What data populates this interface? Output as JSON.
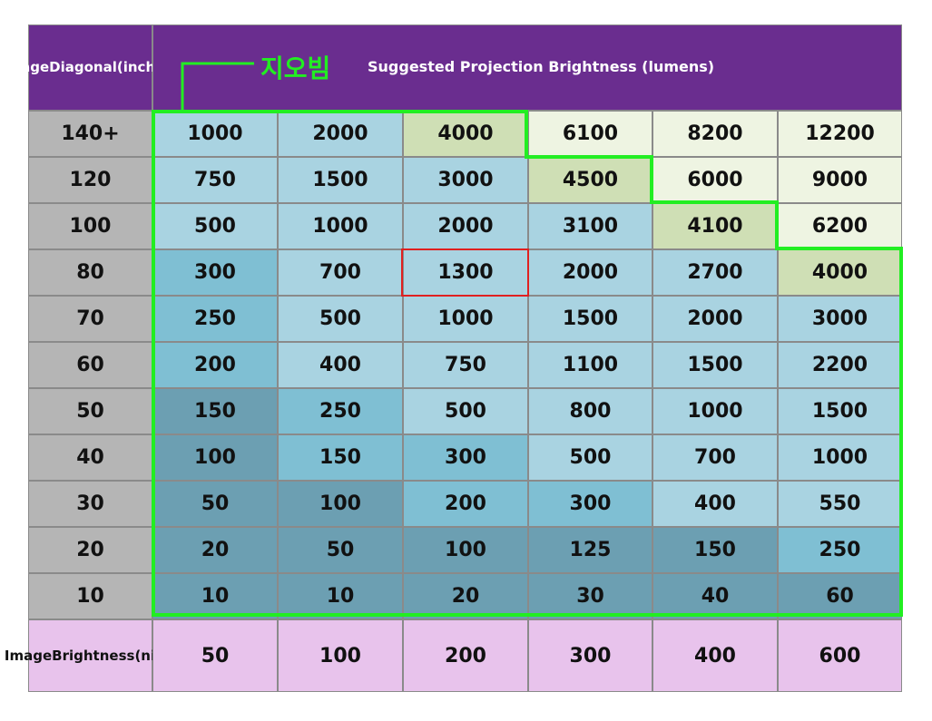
{
  "chart_data": {
    "type": "table",
    "title": "Suggested Projection Brightness (lumens)",
    "annotation_label": "지오빔",
    "row_header_label": "Image Diagonal (inches)",
    "row_header_lines": [
      "Image",
      "Diagonal",
      "(inches)"
    ],
    "column_header_label": "Image Brightness (nits)",
    "column_header_lines": [
      "Image",
      "Brightness",
      "(nits)"
    ],
    "columns_nits": [
      "50",
      "100",
      "200",
      "300",
      "400",
      "600"
    ],
    "rows": [
      {
        "diagonal": "140+",
        "lumens": [
          "1000",
          "2000",
          "4000",
          "6100",
          "8200",
          "12200"
        ]
      },
      {
        "diagonal": "120",
        "lumens": [
          "750",
          "1500",
          "3000",
          "4500",
          "6000",
          "9000"
        ]
      },
      {
        "diagonal": "100",
        "lumens": [
          "500",
          "1000",
          "2000",
          "3100",
          "4100",
          "6200"
        ]
      },
      {
        "diagonal": "80",
        "lumens": [
          "300",
          "700",
          "1300",
          "2000",
          "2700",
          "4000"
        ]
      },
      {
        "diagonal": "70",
        "lumens": [
          "250",
          "500",
          "1000",
          "1500",
          "2000",
          "3000"
        ]
      },
      {
        "diagonal": "60",
        "lumens": [
          "200",
          "400",
          "750",
          "1100",
          "1500",
          "2200"
        ]
      },
      {
        "diagonal": "50",
        "lumens": [
          "150",
          "250",
          "500",
          "800",
          "1000",
          "1500"
        ]
      },
      {
        "diagonal": "40",
        "lumens": [
          "100",
          "150",
          "300",
          "500",
          "700",
          "1000"
        ]
      },
      {
        "diagonal": "30",
        "lumens": [
          "50",
          "100",
          "200",
          "300",
          "400",
          "550"
        ]
      },
      {
        "diagonal": "20",
        "lumens": [
          "20",
          "50",
          "100",
          "125",
          "150",
          "250"
        ]
      },
      {
        "diagonal": "10",
        "lumens": [
          "10",
          "10",
          "20",
          "30",
          "40",
          "60"
        ]
      }
    ],
    "cell_shades": [
      [
        "light",
        "light",
        "threshold",
        "excess",
        "excess",
        "excess"
      ],
      [
        "light",
        "light",
        "light",
        "threshold",
        "excess",
        "excess"
      ],
      [
        "light",
        "light",
        "light",
        "light",
        "threshold",
        "excess"
      ],
      [
        "mid",
        "light",
        "light",
        "light",
        "light",
        "threshold"
      ],
      [
        "mid",
        "light",
        "light",
        "light",
        "light",
        "light"
      ],
      [
        "mid",
        "light",
        "light",
        "light",
        "light",
        "light"
      ],
      [
        "dark",
        "mid",
        "light",
        "light",
        "light",
        "light"
      ],
      [
        "dark",
        "mid",
        "mid",
        "light",
        "light",
        "light"
      ],
      [
        "dark",
        "dark",
        "mid",
        "mid",
        "light",
        "light"
      ],
      [
        "dark",
        "dark",
        "dark",
        "dark",
        "dark",
        "mid"
      ],
      [
        "dark",
        "dark",
        "dark",
        "dark",
        "dark",
        "dark"
      ]
    ],
    "highlighted_cell": {
      "diagonal": "80",
      "nits": "200",
      "lumens": "1300"
    },
    "colors": {
      "header": "#6a2d8f",
      "row_header": "#b5b5b5",
      "footer": "#e8c3ec",
      "light": "#a9d3e1",
      "mid": "#7fbfd3",
      "dark": "#6c9fb2",
      "threshold": "#cfdfb5",
      "excess": "#eef4e2",
      "outline": "#22ee22",
      "highlight": "#e02020",
      "grid": "#8a8a8a"
    }
  }
}
